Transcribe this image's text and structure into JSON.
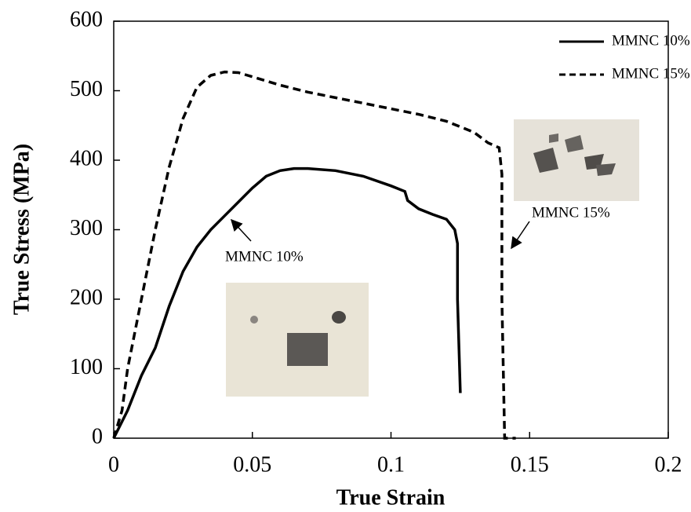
{
  "chart_data": {
    "type": "line",
    "xlabel": "True Strain",
    "ylabel": "True Stress (MPa)",
    "xlim": [
      0,
      0.2
    ],
    "xticks": [
      0,
      0.05,
      0.1,
      0.15,
      0.2
    ],
    "ylim": [
      0,
      600
    ],
    "yticks": [
      0,
      100,
      200,
      300,
      400,
      500,
      600
    ],
    "grid": false,
    "legend": "upper right",
    "annotations": [
      "MMNC 10%",
      "MMNC 15%"
    ],
    "series": [
      {
        "name": "MMNC 10%",
        "color": "#000000",
        "style": "solid",
        "x": [
          0,
          0.005,
          0.01,
          0.015,
          0.02,
          0.025,
          0.03,
          0.035,
          0.04,
          0.045,
          0.05,
          0.055,
          0.06,
          0.065,
          0.07,
          0.08,
          0.09,
          0.1,
          0.105,
          0.106,
          0.11,
          0.115,
          0.12,
          0.123,
          0.124,
          0.124,
          0.125
        ],
        "values": [
          0,
          40,
          90,
          130,
          190,
          240,
          275,
          300,
          320,
          340,
          360,
          377,
          385,
          388,
          388,
          385,
          377,
          363,
          355,
          342,
          330,
          322,
          315,
          300,
          280,
          200,
          65
        ]
      },
      {
        "name": "MMNC 15%",
        "color": "#000000",
        "style": "dashed",
        "x": [
          0,
          0.003,
          0.005,
          0.01,
          0.015,
          0.02,
          0.025,
          0.03,
          0.035,
          0.04,
          0.045,
          0.05,
          0.06,
          0.07,
          0.08,
          0.09,
          0.1,
          0.11,
          0.12,
          0.13,
          0.135,
          0.139,
          0.14,
          0.14,
          0.141,
          0.145
        ],
        "values": [
          0,
          40,
          100,
          200,
          300,
          390,
          460,
          505,
          522,
          527,
          526,
          520,
          508,
          498,
          490,
          482,
          474,
          466,
          456,
          440,
          425,
          418,
          380,
          200,
          0,
          0
        ]
      }
    ]
  }
}
